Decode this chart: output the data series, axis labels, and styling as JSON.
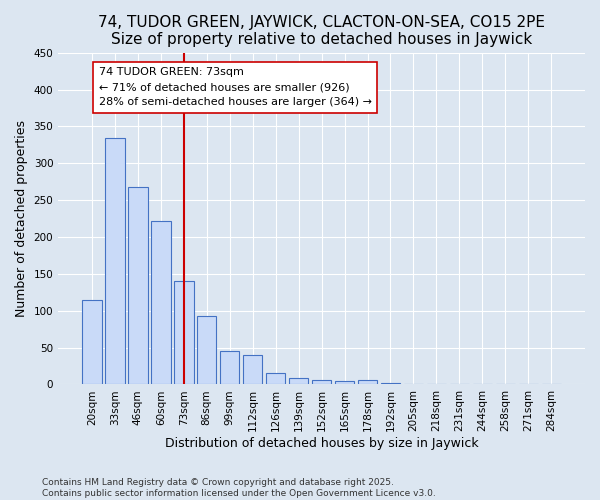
{
  "title1": "74, TUDOR GREEN, JAYWICK, CLACTON-ON-SEA, CO15 2PE",
  "title2": "Size of property relative to detached houses in Jaywick",
  "xlabel": "Distribution of detached houses by size in Jaywick",
  "ylabel": "Number of detached properties",
  "categories": [
    "20sqm",
    "33sqm",
    "46sqm",
    "60sqm",
    "73sqm",
    "86sqm",
    "99sqm",
    "112sqm",
    "126sqm",
    "139sqm",
    "152sqm",
    "165sqm",
    "178sqm",
    "192sqm",
    "205sqm",
    "218sqm",
    "231sqm",
    "244sqm",
    "258sqm",
    "271sqm",
    "284sqm"
  ],
  "values": [
    115,
    335,
    268,
    222,
    140,
    93,
    45,
    40,
    15,
    9,
    6,
    5,
    6,
    2,
    1,
    1,
    1,
    0,
    0,
    0,
    0
  ],
  "bar_color": "#c9daf8",
  "bar_edge_color": "#4472c4",
  "vline_index": 4,
  "vline_color": "#cc0000",
  "annotation_text": "74 TUDOR GREEN: 73sqm\n← 71% of detached houses are smaller (926)\n28% of semi-detached houses are larger (364) →",
  "ylim": [
    0,
    450
  ],
  "yticks": [
    0,
    50,
    100,
    150,
    200,
    250,
    300,
    350,
    400,
    450
  ],
  "footnote": "Contains HM Land Registry data © Crown copyright and database right 2025.\nContains public sector information licensed under the Open Government Licence v3.0.",
  "bg_color": "#dce6f1",
  "title1_fontsize": 11,
  "title2_fontsize": 10,
  "xlabel_fontsize": 9,
  "ylabel_fontsize": 9,
  "tick_fontsize": 7.5,
  "annot_fontsize": 8,
  "footnote_fontsize": 6.5
}
